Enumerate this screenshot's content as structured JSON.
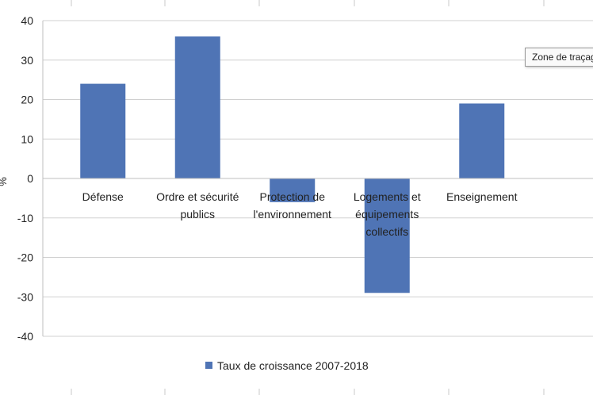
{
  "chart_data": {
    "type": "bar",
    "title": "",
    "xlabel": "",
    "ylabel": "%",
    "ylim": [
      -40,
      40
    ],
    "yticks": [
      40,
      30,
      20,
      10,
      0,
      -10,
      -20,
      -30,
      -40
    ],
    "grid": true,
    "legend_position": "bottom",
    "categories": [
      [
        "Défense"
      ],
      [
        "Ordre et sécurité",
        "publics"
      ],
      [
        "Protection de",
        "l'environnement"
      ],
      [
        "Logements et",
        "équipements",
        "collectifs"
      ],
      [
        "Enseignement"
      ]
    ],
    "series": [
      {
        "name": "Taux de croissance 2007-2018",
        "color": "#4f74b5",
        "values": [
          24,
          36,
          -6,
          -29,
          19
        ]
      }
    ]
  },
  "tooltip": {
    "text": "Zone de traçage"
  }
}
